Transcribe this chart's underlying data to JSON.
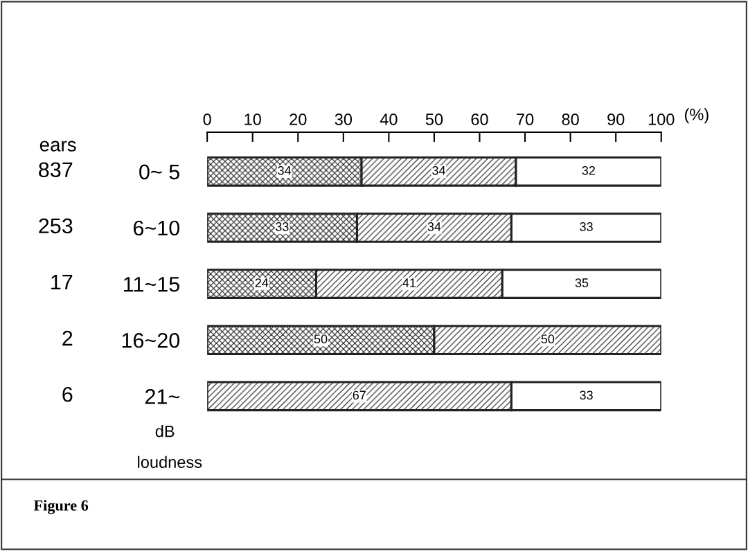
{
  "chart_data": {
    "type": "bar",
    "orientation": "horizontal",
    "stacked": true,
    "categories": [
      "0~ 5",
      "6~10",
      "11~15",
      "16~20",
      "21~"
    ],
    "series": [
      {
        "color": "#222222",
        "values": [
          34,
          33,
          24,
          50,
          null
        ]
      },
      {
        "color": "#222222",
        "values": [
          34,
          34,
          41,
          50,
          67
        ]
      },
      {
        "color": "#ffffff",
        "values": [
          32,
          33,
          35,
          null,
          33
        ]
      }
    ],
    "xlim": [
      0,
      100
    ],
    "xticks": [
      0,
      10,
      20,
      30,
      40,
      50,
      60,
      70,
      80,
      90,
      100
    ],
    "xlabel": "(%)",
    "data_labels": true,
    "grid": false,
    "annotations": [
      "ears",
      "837",
      "253",
      "17",
      "2",
      "6",
      "dB",
      "loudness",
      "Figure 6"
    ]
  }
}
